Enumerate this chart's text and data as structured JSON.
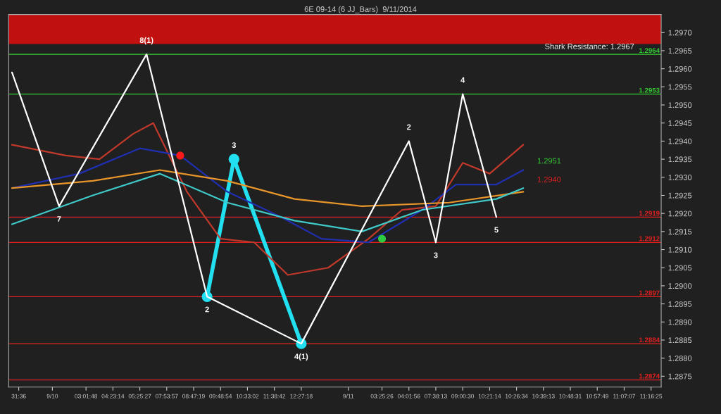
{
  "chart_data": {
    "type": "line",
    "title": "6E 09-14 (6 JJ_Bars)  9/11/2014",
    "categories": [
      null,
      "31:36",
      null,
      null,
      null,
      null,
      "9/10",
      null,
      null,
      null,
      null,
      "03:01:48",
      null,
      null,
      null,
      "04:23:14",
      null,
      null,
      null,
      "05:25:27",
      null,
      null,
      null,
      "07:53:57",
      null,
      null,
      null,
      "08:47:19",
      null,
      null,
      null,
      "09:48:54",
      null,
      null,
      null,
      "10:33:02",
      null,
      null,
      null,
      "11:38:42",
      null,
      null,
      null,
      "12:27:18",
      null,
      null,
      null,
      null,
      null,
      null,
      "9/11",
      null,
      null,
      null,
      null,
      "03:25:26",
      null,
      null,
      null,
      "04:01:56",
      null,
      null,
      null,
      "07:38:13",
      null,
      null,
      null,
      "09:00:30",
      null,
      null,
      null,
      "10:21:14",
      null,
      null,
      null,
      "10:26:34",
      null,
      null,
      null,
      "10:39:13",
      null,
      null,
      null,
      "10:48:31",
      null,
      null,
      null,
      "10:57:49",
      null,
      null,
      null,
      "11:07:07",
      null,
      null,
      null,
      "11:16:25",
      null
    ],
    "ylim": [
      1.2872,
      1.2975
    ],
    "yticks": [
      {
        "value": 1.2875,
        "label": "1.2875"
      },
      {
        "value": 1.288,
        "label": "1.2880"
      },
      {
        "value": 1.2885,
        "label": "1.2885"
      },
      {
        "value": 1.289,
        "label": "1.2890"
      },
      {
        "value": 1.2895,
        "label": "1.2895"
      },
      {
        "value": 1.29,
        "label": "1.2900"
      },
      {
        "value": 1.2905,
        "label": "1.2905"
      },
      {
        "value": 1.291,
        "label": "1.2910"
      },
      {
        "value": 1.2915,
        "label": "1.2915"
      },
      {
        "value": 1.292,
        "label": "1.2920"
      },
      {
        "value": 1.2925,
        "label": "1.2925"
      },
      {
        "value": 1.293,
        "label": "1.2930"
      },
      {
        "value": 1.2935,
        "label": "1.2935"
      },
      {
        "value": 1.294,
        "label": "1.2940"
      },
      {
        "value": 1.2945,
        "label": "1.2945"
      },
      {
        "value": 1.295,
        "label": "1.2950"
      },
      {
        "value": 1.2955,
        "label": "1.2955"
      },
      {
        "value": 1.296,
        "label": "1.2960"
      },
      {
        "value": 1.2965,
        "label": "1.2965"
      },
      {
        "value": 1.297,
        "label": "1.2970"
      }
    ],
    "grid": false,
    "series": [
      {
        "color": "#c0392b",
        "values": [
          1.2939,
          null,
          null,
          null,
          null,
          null,
          null,
          null,
          1.2936,
          null,
          null,
          null,
          null,
          1.2935,
          null,
          null,
          null,
          null,
          1.2942,
          null,
          null,
          1.2945,
          null,
          null,
          null,
          null,
          1.2926,
          null,
          null,
          null,
          null,
          1.2913,
          null,
          null,
          null,
          null,
          1.2912,
          null,
          null,
          null,
          null,
          1.2903,
          null,
          null,
          null,
          null,
          null,
          1.2905,
          null,
          null,
          null,
          null,
          null,
          1.2913,
          null,
          null,
          null,
          null,
          1.2921,
          null,
          null,
          null,
          null,
          1.2922,
          null,
          null,
          null,
          1.2934,
          null,
          null,
          null,
          1.2931,
          null,
          null,
          null,
          null,
          1.2939,
          null,
          null,
          null,
          null,
          null,
          null,
          null,
          null,
          null,
          null,
          null,
          null,
          null,
          null,
          null,
          null,
          null,
          null,
          null,
          null
        ]
      },
      {
        "color": "#1f2fb0",
        "values": [
          1.2927,
          null,
          null,
          null,
          null,
          null,
          null,
          null,
          null,
          null,
          1.2931,
          null,
          null,
          null,
          null,
          null,
          null,
          null,
          null,
          1.2938,
          null,
          null,
          null,
          null,
          null,
          1.2936,
          null,
          null,
          null,
          null,
          null,
          null,
          1.2926,
          null,
          null,
          null,
          null,
          null,
          null,
          null,
          1.2919,
          null,
          null,
          null,
          null,
          null,
          1.2913,
          null,
          null,
          null,
          null,
          null,
          null,
          1.2912,
          null,
          null,
          null,
          null,
          null,
          null,
          null,
          1.2921,
          null,
          null,
          null,
          null,
          1.2928,
          null,
          null,
          null,
          null,
          null,
          1.2928,
          null,
          null,
          null,
          1.2932,
          null,
          null,
          null,
          null,
          null,
          null,
          null,
          null,
          null,
          null,
          null,
          null,
          null,
          null,
          null,
          null,
          null,
          null,
          null,
          null
        ]
      },
      {
        "color": "#e8962a",
        "values": [
          1.2927,
          null,
          null,
          null,
          null,
          null,
          null,
          null,
          null,
          null,
          null,
          null,
          1.2929,
          null,
          null,
          null,
          null,
          null,
          null,
          null,
          null,
          null,
          1.2932,
          null,
          null,
          null,
          null,
          null,
          null,
          null,
          null,
          null,
          1.2929,
          null,
          null,
          null,
          null,
          null,
          null,
          null,
          null,
          null,
          1.2924,
          null,
          null,
          null,
          null,
          null,
          null,
          null,
          null,
          null,
          1.2922,
          null,
          null,
          null,
          null,
          null,
          null,
          null,
          null,
          null,
          null,
          null,
          null,
          1.2923,
          null,
          null,
          null,
          null,
          null,
          null,
          null,
          null,
          null,
          null,
          1.2926,
          null,
          null,
          null,
          null,
          null,
          null,
          null,
          null,
          null,
          null,
          null,
          null,
          null,
          null,
          null,
          null,
          null,
          null,
          null,
          null
        ]
      },
      {
        "color": "#3fc9c9",
        "values": [
          1.2917,
          null,
          null,
          null,
          null,
          null,
          null,
          null,
          null,
          null,
          null,
          null,
          1.2925,
          null,
          null,
          null,
          null,
          null,
          null,
          null,
          null,
          null,
          1.2931,
          null,
          null,
          null,
          null,
          null,
          null,
          null,
          null,
          null,
          1.2923,
          null,
          null,
          null,
          null,
          null,
          null,
          null,
          null,
          null,
          1.2918,
          null,
          null,
          null,
          null,
          null,
          null,
          null,
          null,
          null,
          1.2915,
          null,
          null,
          null,
          null,
          null,
          null,
          null,
          null,
          1.2921,
          null,
          null,
          null,
          null,
          null,
          null,
          null,
          null,
          null,
          null,
          1.2924,
          null,
          null,
          null,
          1.2927,
          null,
          null,
          null,
          null,
          null,
          null,
          null,
          null,
          null,
          null,
          null,
          null,
          null,
          null,
          null,
          null,
          null,
          null,
          null,
          null
        ]
      },
      {
        "color": "#ffffff",
        "values": [
          1.2959,
          null,
          null,
          null,
          null,
          null,
          null,
          1.2922,
          null,
          null,
          null,
          null,
          null,
          null,
          null,
          null,
          null,
          null,
          null,
          null,
          1.2964,
          null,
          null,
          null,
          null,
          null,
          null,
          null,
          null,
          1.2897,
          null,
          null,
          null,
          null,
          null,
          null,
          null,
          null,
          null,
          null,
          null,
          null,
          null,
          1.2884,
          null,
          null,
          null,
          null,
          null,
          null,
          null,
          null,
          null,
          null,
          null,
          null,
          null,
          null,
          null,
          1.294,
          null,
          null,
          null,
          1.2912,
          null,
          null,
          null,
          1.2953,
          null,
          null,
          null,
          null,
          1.2919,
          null,
          null,
          null,
          null,
          null,
          null,
          null,
          null,
          null,
          null,
          null,
          null,
          null,
          null,
          null,
          null,
          null,
          null,
          null,
          null,
          null,
          null,
          null,
          null
        ]
      },
      {
        "color": "#22e0f0",
        "marker": "circle",
        "values": [
          null,
          null,
          null,
          null,
          null,
          null,
          null,
          null,
          null,
          null,
          null,
          null,
          null,
          null,
          null,
          null,
          null,
          null,
          null,
          null,
          null,
          null,
          null,
          null,
          null,
          null,
          null,
          null,
          null,
          1.2897,
          null,
          null,
          null,
          1.2935,
          null,
          null,
          null,
          null,
          null,
          null,
          null,
          null,
          null,
          1.2884,
          null,
          null,
          null,
          null,
          null,
          null,
          null,
          null,
          null,
          null,
          null,
          null,
          null,
          null,
          null,
          null,
          null,
          null,
          null,
          null,
          null,
          null,
          null,
          null,
          null,
          null,
          null,
          null,
          null,
          null,
          null,
          null,
          null,
          null,
          null,
          null,
          null,
          null,
          null,
          null,
          null,
          null,
          null,
          null,
          null,
          null,
          null,
          null,
          null,
          null,
          null,
          null,
          null
        ]
      },
      {
        "type": "scatter",
        "color": "#ff1a1a",
        "values": [
          null,
          null,
          null,
          null,
          null,
          null,
          null,
          null,
          null,
          null,
          null,
          null,
          null,
          null,
          null,
          null,
          null,
          null,
          null,
          null,
          null,
          null,
          null,
          null,
          null,
          1.2936,
          null,
          null,
          null,
          null,
          null,
          null,
          null,
          null,
          null,
          null,
          null,
          null,
          null,
          null,
          null,
          null,
          null,
          null,
          null,
          null,
          null,
          null,
          null,
          null,
          null,
          null,
          null,
          null,
          null,
          null,
          null,
          null,
          null,
          null,
          null,
          null,
          null,
          null,
          null,
          null,
          null,
          null,
          null,
          null,
          null,
          null,
          null,
          null,
          null,
          null,
          null,
          null,
          null,
          null,
          null,
          null,
          null,
          null,
          null,
          null,
          null,
          null,
          null,
          null,
          null,
          null,
          null,
          null,
          null,
          null,
          null
        ]
      },
      {
        "type": "scatter",
        "color": "#2ecc40",
        "values": [
          null,
          null,
          null,
          null,
          null,
          null,
          null,
          null,
          null,
          null,
          null,
          null,
          null,
          null,
          null,
          null,
          null,
          null,
          null,
          null,
          null,
          null,
          null,
          null,
          null,
          null,
          null,
          null,
          null,
          null,
          null,
          null,
          null,
          null,
          null,
          null,
          null,
          null,
          null,
          null,
          null,
          null,
          null,
          null,
          null,
          null,
          null,
          null,
          null,
          null,
          null,
          null,
          null,
          null,
          null,
          1.2913,
          null,
          null,
          null,
          null,
          null,
          null,
          null,
          null,
          null,
          null,
          null,
          null,
          null,
          null,
          null,
          null,
          null,
          null,
          null,
          null,
          null,
          null,
          null,
          null,
          null,
          null,
          null,
          null,
          null,
          null,
          null,
          null,
          null,
          null,
          null,
          null,
          null,
          null,
          null,
          null,
          null
        ]
      }
    ],
    "ref_lines": [
      {
        "axis": "y",
        "value": 1.2964,
        "label": "1.2964",
        "color": "#33cc33"
      },
      {
        "axis": "y",
        "value": 1.2953,
        "label": "1.2953",
        "color": "#33cc33"
      },
      {
        "axis": "y",
        "value": 1.2919,
        "label": "1.2919",
        "color": "#e02020"
      },
      {
        "axis": "y",
        "value": 1.2912,
        "label": "1.2912",
        "color": "#e02020"
      },
      {
        "axis": "y",
        "value": 1.2897,
        "label": "1.2897",
        "color": "#e02020"
      },
      {
        "axis": "y",
        "value": 1.2884,
        "label": "1.2884",
        "color": "#e02020"
      },
      {
        "axis": "y",
        "value": 1.2874,
        "label": "1.2874",
        "color": "#e02020"
      }
    ],
    "bands": [
      {
        "axis": "y",
        "from": 1.2967,
        "to": 1.2975,
        "label": "Shark Resistance: 1.2967",
        "color": "#c01010"
      }
    ],
    "annotations": [
      {
        "text": "7",
        "y": 1.2922
      },
      {
        "text": "8(1)",
        "y": 1.2964
      },
      {
        "text": "2",
        "y": 1.2897
      },
      {
        "text": "3",
        "y": 1.2935
      },
      {
        "text": "4(1)",
        "y": 1.2884
      },
      {
        "text": "2",
        "y": 1.294
      },
      {
        "text": "3",
        "y": 1.2912
      },
      {
        "text": "4",
        "y": 1.2953
      },
      {
        "text": "5",
        "y": 1.2919
      },
      "1.2951",
      "1.2940"
    ]
  }
}
